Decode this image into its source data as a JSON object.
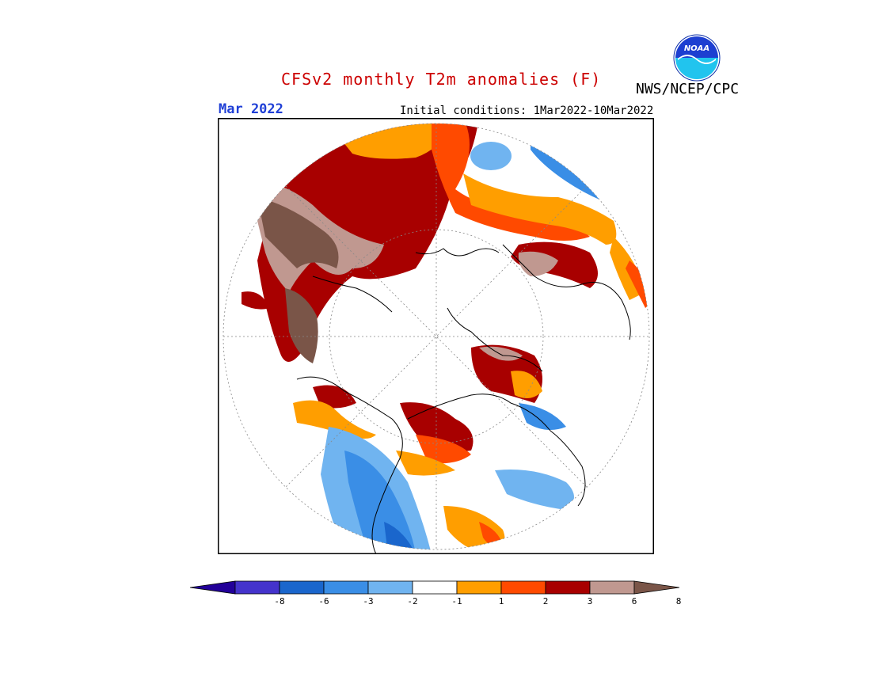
{
  "header": {
    "title": "CFSv2 monthly T2m anomalies (F)",
    "agency": "NWS/NCEP/CPC",
    "logo_text": "NOAA",
    "forecast_month": "Mar 2022",
    "initial_conditions": "Initial conditions: 1Mar2022-10Mar2022"
  },
  "map": {
    "projection": "north-polar-stereographic",
    "background": "#ffffff",
    "graticule": "dotted",
    "coastlines": true
  },
  "colorbar": {
    "colors": [
      "#220099",
      "#4433cc",
      "#1a66cc",
      "#3a8ee6",
      "#70b4f0",
      "#ffffff",
      "#ff9e00",
      "#ff4a00",
      "#a80000",
      "#c09890",
      "#7a5548"
    ],
    "tick_labels": [
      "-8",
      "-6",
      "-3",
      "-2",
      "-1",
      "1",
      "2",
      "3",
      "6",
      "8"
    ]
  },
  "colors": {
    "title": "#cc0000",
    "month": "#1f3fd6"
  }
}
